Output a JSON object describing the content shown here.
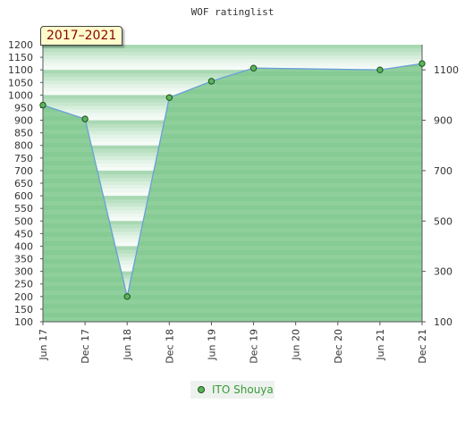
{
  "chart_data": {
    "type": "area",
    "title": "WOF ratinglist",
    "period_label": "2017–2021",
    "categories": [
      "Jun 17",
      "Dec 17",
      "Jun 18",
      "Dec 18",
      "Jun 19",
      "Dec 19",
      "Jun 20",
      "Dec 20",
      "Jun 21",
      "Dec 21"
    ],
    "series": [
      {
        "name": "ITO Shouya",
        "points": [
          {
            "x": "Jun 17",
            "y": 960
          },
          {
            "x": "Dec 17",
            "y": 905
          },
          {
            "x": "Jun 18",
            "y": 200
          },
          {
            "x": "Dec 18",
            "y": 990
          },
          {
            "x": "Jun 19",
            "y": 1055
          },
          {
            "x": "Dec 19",
            "y": 1107
          },
          {
            "x": "Jun 21",
            "y": 1100
          },
          {
            "x": "Dec 21",
            "y": 1125
          }
        ]
      }
    ],
    "ylim": [
      100,
      1200
    ],
    "y_ticks_left": [
      100,
      150,
      200,
      250,
      300,
      350,
      400,
      450,
      500,
      550,
      600,
      650,
      700,
      750,
      800,
      850,
      900,
      950,
      1000,
      1050,
      1100,
      1150,
      1200
    ],
    "y_ticks_right": [
      100,
      300,
      500,
      700,
      900,
      1100
    ],
    "grid": false,
    "legend_position": "bottom-center",
    "colors": {
      "fill": "#8fcf9b",
      "line": "#6a9fd8",
      "marker": "#5ab55a",
      "marker_stroke": "#1f4f1f",
      "legend_text": "#3a9a3a",
      "period_text": "#8b0000"
    }
  }
}
